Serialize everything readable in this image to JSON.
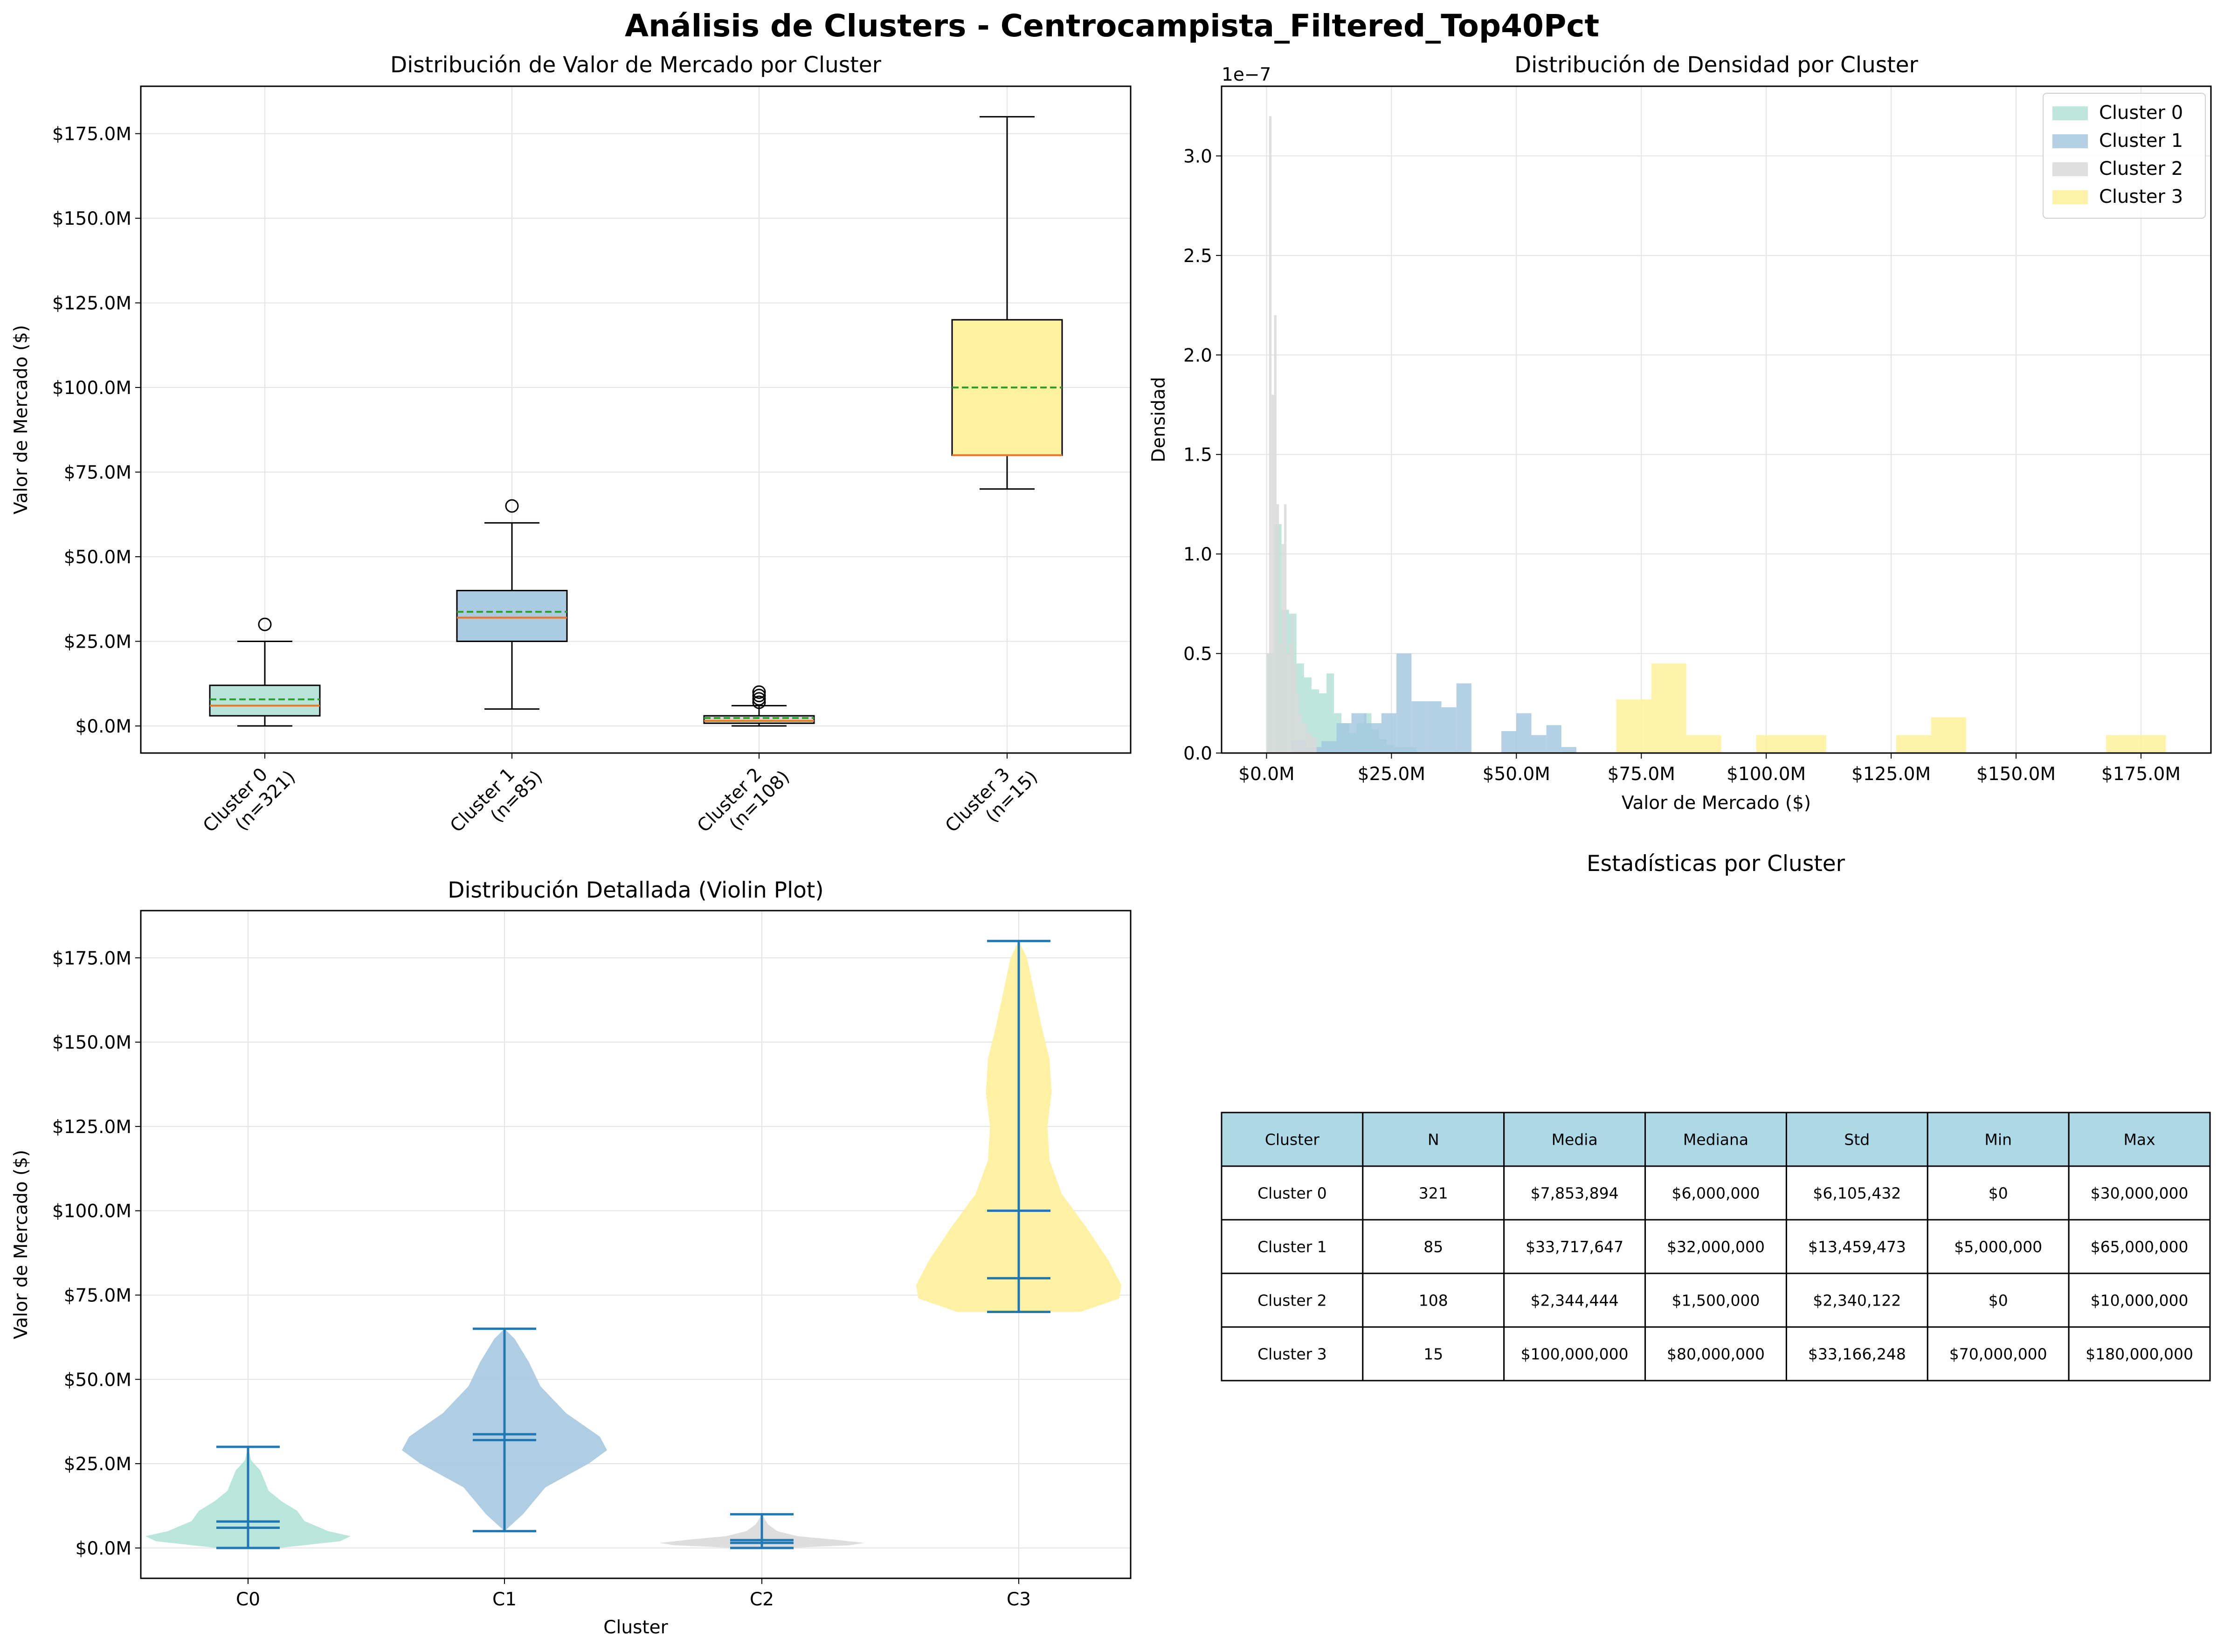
{
  "figure": {
    "title": "Análisis de Clusters - Centrocampista_Filtered_Top40Pct"
  },
  "chart_data": [
    {
      "type": "box",
      "title": "Distribución de Valor de Mercado por Cluster",
      "ylabel": "Valor de Mercado ($)",
      "ylim": [
        -8000000,
        189000000
      ],
      "yticks": [
        0,
        25000000,
        50000000,
        75000000,
        100000000,
        125000000,
        150000000,
        175000000
      ],
      "ytick_labels": [
        "$0.0M",
        "$25.0M",
        "$50.0M",
        "$75.0M",
        "$100.0M",
        "$125.0M",
        "$150.0M",
        "$175.0M"
      ],
      "grid": true,
      "categories": [
        "Cluster 0\n(n=321)",
        "Cluster 1\n(n=85)",
        "Cluster 2\n(n=108)",
        "Cluster 3\n(n=15)"
      ],
      "boxes": [
        {
          "whisker_low": 0,
          "q1": 3000000,
          "median": 6000000,
          "mean": 7853894,
          "q3": 12000000,
          "whisker_high": 25000000,
          "outliers": [
            30000000
          ],
          "color": "#b3e2d7"
        },
        {
          "whisker_low": 5000000,
          "q1": 25000000,
          "median": 32000000,
          "mean": 33717647,
          "q3": 40000000,
          "whisker_high": 60000000,
          "outliers": [
            65000000
          ],
          "color": "#a6c8e0"
        },
        {
          "whisker_low": 0,
          "q1": 800000,
          "median": 1500000,
          "mean": 2344444,
          "q3": 3000000,
          "whisker_high": 6000000,
          "outliers": [
            7000000,
            8000000,
            9000000,
            10000000
          ],
          "color": "#d5d5d5"
        },
        {
          "whisker_low": 70000000,
          "q1": 80000000,
          "median": 80000000,
          "mean": 100000000,
          "q3": 120000000,
          "whisker_high": 180000000,
          "outliers": [],
          "color": "#fff09a"
        }
      ]
    },
    {
      "type": "histogram",
      "title": "Distribución de Densidad por Cluster",
      "xlabel": "Valor de Mercado ($)",
      "ylabel": "Densidad",
      "y_offset_text": "1e−7",
      "xlim": [
        -9000000,
        189000000
      ],
      "ylim": [
        0,
        3.35
      ],
      "xticks": [
        0,
        25000000,
        50000000,
        75000000,
        100000000,
        125000000,
        150000000,
        175000000
      ],
      "xtick_labels": [
        "$0.0M",
        "$25.0M",
        "$50.0M",
        "$75.0M",
        "$100.0M",
        "$125.0M",
        "$150.0M",
        "$175.0M"
      ],
      "yticks": [
        0,
        0.5,
        1.0,
        1.5,
        2.0,
        2.5,
        3.0
      ],
      "ytick_labels": [
        "0.0",
        "0.5",
        "1.0",
        "1.5",
        "2.0",
        "2.5",
        "3.0"
      ],
      "grid": true,
      "legend": "top-right",
      "series": [
        {
          "name": "Cluster 0",
          "color": "#b3e2d7",
          "bins": [
            [
              0,
              1500000,
              0.5
            ],
            [
              1500000,
              3000000,
              1.15
            ],
            [
              3000000,
              4500000,
              0.72
            ],
            [
              4500000,
              6000000,
              0.7
            ],
            [
              6000000,
              7500000,
              0.45
            ],
            [
              7500000,
              9000000,
              0.38
            ],
            [
              9000000,
              10500000,
              0.32
            ],
            [
              10500000,
              12000000,
              0.3
            ],
            [
              12000000,
              13500000,
              0.4
            ],
            [
              13500000,
              15000000,
              0.2
            ],
            [
              15000000,
              16500000,
              0.15
            ],
            [
              16500000,
              18000000,
              0.1
            ],
            [
              18000000,
              19500000,
              0.15
            ],
            [
              19500000,
              21000000,
              0.2
            ],
            [
              21000000,
              22500000,
              0.12
            ],
            [
              22500000,
              24000000,
              0.07
            ],
            [
              24000000,
              25500000,
              0.04
            ],
            [
              25500000,
              30000000,
              0.03
            ]
          ]
        },
        {
          "name": "Cluster 1",
          "color": "#a6c8e0",
          "bins": [
            [
              5000000,
              8000000,
              0.06
            ],
            [
              8000000,
              11000000,
              0.03
            ],
            [
              11000000,
              14000000,
              0.06
            ],
            [
              14000000,
              17000000,
              0.15
            ],
            [
              17000000,
              20000000,
              0.2
            ],
            [
              20000000,
              23000000,
              0.15
            ],
            [
              23000000,
              26000000,
              0.2
            ],
            [
              26000000,
              29000000,
              0.5
            ],
            [
              29000000,
              32000000,
              0.26
            ],
            [
              32000000,
              35000000,
              0.26
            ],
            [
              35000000,
              38000000,
              0.23
            ],
            [
              38000000,
              41000000,
              0.35
            ],
            [
              41000000,
              44000000,
              0.0
            ],
            [
              44000000,
              47000000,
              0.0
            ],
            [
              47000000,
              50000000,
              0.11
            ],
            [
              50000000,
              53000000,
              0.2
            ],
            [
              53000000,
              56000000,
              0.09
            ],
            [
              56000000,
              59000000,
              0.14
            ],
            [
              59000000,
              62000000,
              0.03
            ],
            [
              62000000,
              65000000,
              0.0
            ]
          ]
        },
        {
          "name": "Cluster 2",
          "color": "#d9d9d9",
          "bins": [
            [
              0,
              500000,
              0.5
            ],
            [
              500000,
              1000000,
              3.2
            ],
            [
              1000000,
              1500000,
              1.8
            ],
            [
              1500000,
              2000000,
              2.2
            ],
            [
              2000000,
              2500000,
              1.25
            ],
            [
              2500000,
              3000000,
              0.55
            ],
            [
              3000000,
              3500000,
              1.05
            ],
            [
              3500000,
              4000000,
              1.25
            ],
            [
              4000000,
              4500000,
              0.5
            ],
            [
              4500000,
              5000000,
              0.55
            ],
            [
              5000000,
              5500000,
              0.7
            ],
            [
              5500000,
              6000000,
              0.45
            ],
            [
              6000000,
              6500000,
              0.3
            ],
            [
              6500000,
              7000000,
              0.2
            ],
            [
              7000000,
              8000000,
              0.15
            ],
            [
              8000000,
              9000000,
              0.1
            ],
            [
              9000000,
              10000000,
              0.08
            ]
          ]
        },
        {
          "name": "Cluster 3",
          "color": "#fff09a",
          "bins": [
            [
              70000000,
              77000000,
              0.27
            ],
            [
              77000000,
              84000000,
              0.45
            ],
            [
              84000000,
              91000000,
              0.09
            ],
            [
              98000000,
              105000000,
              0.09
            ],
            [
              105000000,
              112000000,
              0.09
            ],
            [
              126000000,
              133000000,
              0.09
            ],
            [
              133000000,
              140000000,
              0.18
            ],
            [
              168000000,
              175000000,
              0.09
            ],
            [
              175000000,
              180000000,
              0.09
            ]
          ]
        }
      ]
    },
    {
      "type": "violin",
      "title": "Distribución Detallada (Violin Plot)",
      "xlabel": "Cluster",
      "ylabel": "Valor de Mercado ($)",
      "ylim": [
        -9000000,
        189000000
      ],
      "yticks": [
        0,
        25000000,
        50000000,
        75000000,
        100000000,
        125000000,
        150000000,
        175000000
      ],
      "ytick_labels": [
        "$0.0M",
        "$25.0M",
        "$50.0M",
        "$75.0M",
        "$100.0M",
        "$125.0M",
        "$150.0M",
        "$175.0M"
      ],
      "categories": [
        "C0",
        "C1",
        "C2",
        "C3"
      ],
      "grid": true,
      "violins": [
        {
          "min": 0,
          "max": 30000000,
          "mean": 7853894,
          "median": 6000000,
          "color": "#b3e2d7",
          "profile": [
            [
              0,
              0.3
            ],
            [
              2000000,
              0.9
            ],
            [
              3500000,
              1.0
            ],
            [
              5000000,
              0.78
            ],
            [
              8000000,
              0.55
            ],
            [
              11000000,
              0.48
            ],
            [
              14000000,
              0.32
            ],
            [
              17000000,
              0.2
            ],
            [
              20000000,
              0.16
            ],
            [
              23000000,
              0.12
            ],
            [
              26000000,
              0.03
            ],
            [
              30000000,
              0.0
            ]
          ]
        },
        {
          "min": 5000000,
          "max": 65000000,
          "mean": 33717647,
          "median": 32000000,
          "color": "#a6c8e0",
          "profile": [
            [
              5000000,
              0.0
            ],
            [
              10000000,
              0.18
            ],
            [
              18000000,
              0.4
            ],
            [
              25000000,
              0.82
            ],
            [
              29000000,
              1.0
            ],
            [
              33000000,
              0.93
            ],
            [
              40000000,
              0.6
            ],
            [
              48000000,
              0.35
            ],
            [
              55000000,
              0.24
            ],
            [
              62000000,
              0.1
            ],
            [
              65000000,
              0.0
            ]
          ]
        },
        {
          "min": 0,
          "max": 10000000,
          "mean": 2344444,
          "median": 1500000,
          "color": "#d9d9d9",
          "profile": [
            [
              0,
              0.25
            ],
            [
              800000,
              0.85
            ],
            [
              1500000,
              1.0
            ],
            [
              2500000,
              0.7
            ],
            [
              3500000,
              0.35
            ],
            [
              5000000,
              0.15
            ],
            [
              7000000,
              0.06
            ],
            [
              10000000,
              0.0
            ]
          ]
        },
        {
          "min": 70000000,
          "max": 180000000,
          "mean": 100000000,
          "median": 80000000,
          "color": "#fff09a",
          "profile": [
            [
              70000000,
              0.6
            ],
            [
              74000000,
              0.98
            ],
            [
              78000000,
              1.0
            ],
            [
              85000000,
              0.88
            ],
            [
              95000000,
              0.66
            ],
            [
              105000000,
              0.42
            ],
            [
              115000000,
              0.3
            ],
            [
              125000000,
              0.28
            ],
            [
              135000000,
              0.32
            ],
            [
              145000000,
              0.3
            ],
            [
              155000000,
              0.22
            ],
            [
              165000000,
              0.15
            ],
            [
              175000000,
              0.08
            ],
            [
              180000000,
              0.0
            ]
          ]
        }
      ]
    },
    {
      "type": "table",
      "title": "Estadísticas por Cluster",
      "header_color": "#add8e6",
      "columns": [
        "Cluster",
        "N",
        "Media",
        "Mediana",
        "Std",
        "Min",
        "Max"
      ],
      "rows": [
        [
          "Cluster 0",
          "321",
          "$7,853,894",
          "$6,000,000",
          "$6,105,432",
          "$0",
          "$30,000,000"
        ],
        [
          "Cluster 1",
          "85",
          "$33,717,647",
          "$32,000,000",
          "$13,459,473",
          "$5,000,000",
          "$65,000,000"
        ],
        [
          "Cluster 2",
          "108",
          "$2,344,444",
          "$1,500,000",
          "$2,340,122",
          "$0",
          "$10,000,000"
        ],
        [
          "Cluster 3",
          "15",
          "$100,000,000",
          "$80,000,000",
          "$33,166,248",
          "$70,000,000",
          "$180,000,000"
        ]
      ]
    }
  ]
}
